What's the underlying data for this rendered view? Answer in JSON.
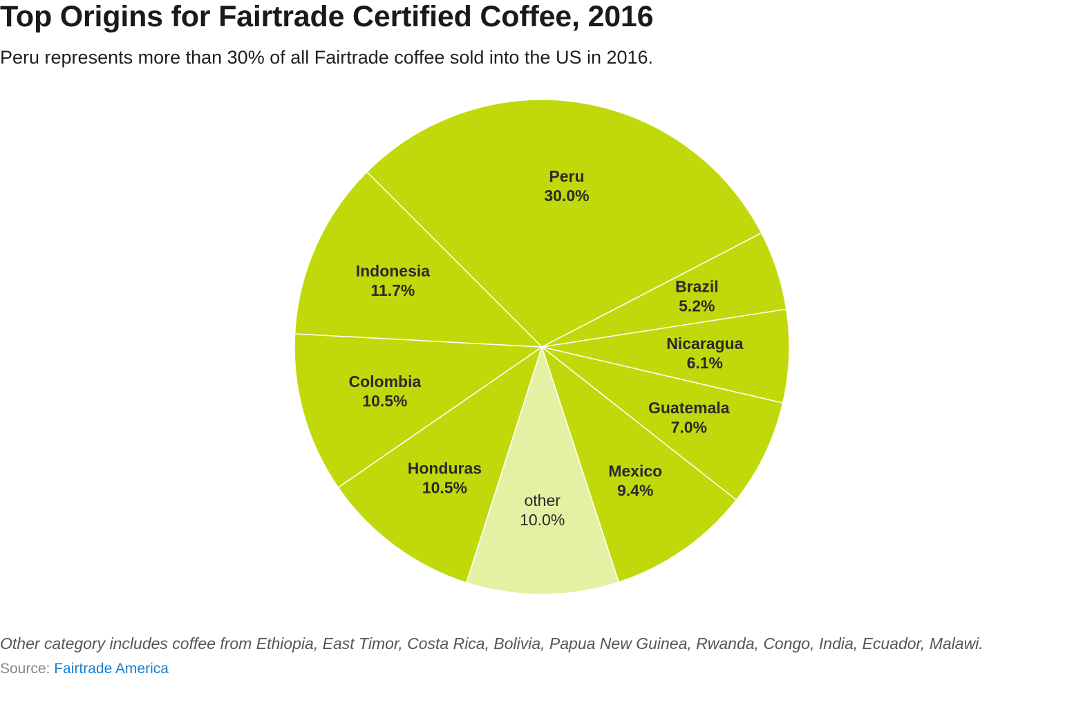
{
  "header": {
    "title": "Top Origins for Fairtrade Certified Coffee, 2016",
    "subtitle": "Peru represents more than 30% of all Fairtrade coffee sold into the US in 2016."
  },
  "footer": {
    "note": "Other category includes coffee from Ethiopia, East Timor, Costa Rica, Bolivia, Papua New Guinea, Rwanda, Congo, India, Ecuador, Malawi.",
    "source_prefix": "Source: ",
    "source_link_text": "Fairtrade America"
  },
  "chart_data": {
    "type": "pie",
    "title": "Top Origins for Fairtrade Certified Coffee, 2016",
    "start_angle_deg": -45,
    "slices": [
      {
        "label": "Peru",
        "value": 30.0,
        "value_label": "30.0%",
        "color": "#c1d90b",
        "bold": true
      },
      {
        "label": "Brazil",
        "value": 5.2,
        "value_label": "5.2%",
        "color": "#c1d90b",
        "bold": true
      },
      {
        "label": "Nicaragua",
        "value": 6.1,
        "value_label": "6.1%",
        "color": "#c1d90b",
        "bold": true
      },
      {
        "label": "Guatemala",
        "value": 7.0,
        "value_label": "7.0%",
        "color": "#c1d90b",
        "bold": true
      },
      {
        "label": "Mexico",
        "value": 9.4,
        "value_label": "9.4%",
        "color": "#c1d90b",
        "bold": true
      },
      {
        "label": "other",
        "value": 10.0,
        "value_label": "10.0%",
        "color": "#e4f1a4",
        "bold": false
      },
      {
        "label": "Honduras",
        "value": 10.5,
        "value_label": "10.5%",
        "color": "#c1d90b",
        "bold": true
      },
      {
        "label": "Colombia",
        "value": 10.5,
        "value_label": "10.5%",
        "color": "#c1d90b",
        "bold": true
      },
      {
        "label": "Indonesia",
        "value": 11.7,
        "value_label": "11.7%",
        "color": "#c1d90b",
        "bold": true
      }
    ]
  }
}
